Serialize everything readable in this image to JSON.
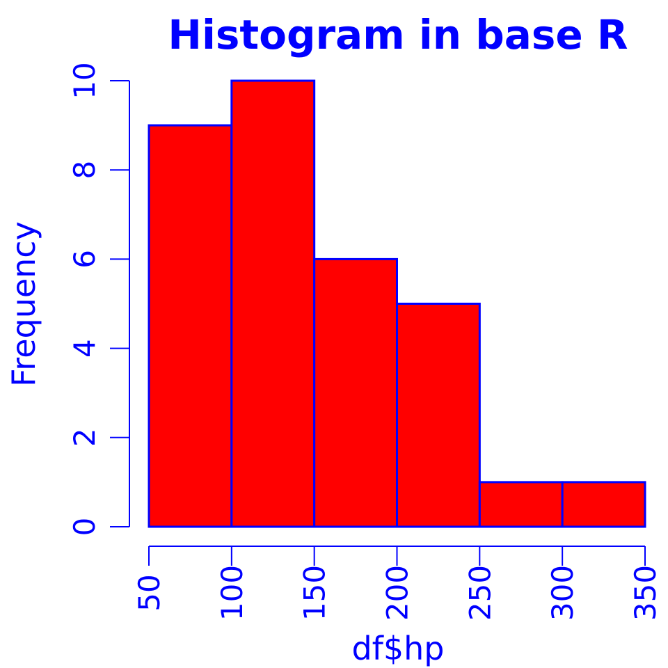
{
  "colors": {
    "fill": "#ff0000",
    "stroke": "#0000ff",
    "text": "#0000ff",
    "background": "#ffffff"
  },
  "chart_data": {
    "type": "bar",
    "title": "Histogram in base R",
    "xlabel": "df$hp",
    "ylabel": "Frequency",
    "bins": [
      {
        "from": 50,
        "to": 100,
        "count": 9
      },
      {
        "from": 100,
        "to": 150,
        "count": 10
      },
      {
        "from": 150,
        "to": 200,
        "count": 6
      },
      {
        "from": 200,
        "to": 250,
        "count": 5
      },
      {
        "from": 250,
        "to": 300,
        "count": 1
      },
      {
        "from": 300,
        "to": 350,
        "count": 1
      }
    ],
    "xlim": [
      50,
      350
    ],
    "ylim": [
      0,
      10
    ],
    "x_ticks": [
      "50",
      "100",
      "150",
      "200",
      "250",
      "300",
      "350"
    ],
    "y_ticks": [
      "0",
      "2",
      "4",
      "6",
      "8",
      "10"
    ],
    "grid": false,
    "legend": "none"
  }
}
